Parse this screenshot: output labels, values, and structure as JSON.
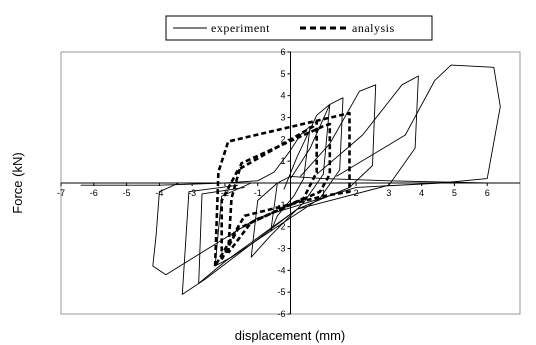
{
  "chart_data": {
    "type": "line",
    "title": "",
    "xlabel": "displacement (mm)",
    "ylabel": "Force (kN)",
    "xlim": [
      -7,
      7
    ],
    "ylim": [
      -6,
      6
    ],
    "x_ticks": [
      -7,
      -6,
      -5,
      -4,
      -3,
      -2,
      -1,
      1,
      2,
      3,
      4,
      5,
      6
    ],
    "y_ticks": [
      -6,
      -5,
      -4,
      -3,
      -2,
      -1,
      1,
      2,
      3,
      4,
      5,
      6
    ],
    "grid": false,
    "legend_position": "top-center",
    "series": [
      {
        "name": "experiment",
        "style": "solid",
        "color": "#000000",
        "loops": [
          [
            [
              -6.4,
              -0.1
            ],
            [
              -4,
              -0.1
            ],
            [
              -2,
              0
            ],
            [
              -1,
              0.1
            ],
            [
              -0.5,
              0.5
            ],
            [
              0,
              1.5
            ],
            [
              0.3,
              2.2
            ],
            [
              0.6,
              2.6
            ],
            [
              0.4,
              0.2
            ],
            [
              0.1,
              -0.6
            ],
            [
              -0.4,
              -1.5
            ],
            [
              -0.6,
              -2.2
            ],
            [
              -0.4,
              0
            ],
            [
              0,
              0.3
            ],
            [
              1,
              0.2
            ],
            [
              3,
              0.1
            ],
            [
              6,
              0
            ]
          ],
          [
            [
              -0.2,
              -0.3
            ],
            [
              0.2,
              1.2
            ],
            [
              0.8,
              3.1
            ],
            [
              1.2,
              3.6
            ],
            [
              1.0,
              0.4
            ],
            [
              0.4,
              -0.9
            ],
            [
              -0.6,
              -2.4
            ],
            [
              -1.2,
              -3.4
            ],
            [
              -1.0,
              -0.8
            ],
            [
              -0.4,
              0
            ]
          ],
          [
            [
              0,
              0.2
            ],
            [
              0.6,
              1.6
            ],
            [
              1.2,
              3.6
            ],
            [
              1.6,
              3.9
            ],
            [
              1.5,
              0.6
            ],
            [
              0.9,
              -0.7
            ],
            [
              -0.2,
              -1.8
            ],
            [
              -1.8,
              -3.4
            ],
            [
              -2.3,
              -3.8
            ],
            [
              -2.1,
              -0.6
            ],
            [
              -1.2,
              0
            ]
          ],
          [
            [
              0.3,
              0.3
            ],
            [
              1.2,
              1.8
            ],
            [
              2.1,
              4.2
            ],
            [
              2.6,
              4.5
            ],
            [
              2.5,
              0.8
            ],
            [
              1.8,
              -0.2
            ],
            [
              0.2,
              -1.2
            ],
            [
              -2.0,
              -3.6
            ],
            [
              -2.8,
              -4.6
            ],
            [
              -2.7,
              -0.5
            ],
            [
              -1.4,
              -0.2
            ]
          ],
          [
            [
              0.8,
              0.4
            ],
            [
              2.2,
              2.2
            ],
            [
              3.4,
              4.5
            ],
            [
              3.9,
              4.9
            ],
            [
              3.8,
              1.6
            ],
            [
              3.0,
              -0.1
            ],
            [
              0.2,
              -1.2
            ],
            [
              -2.6,
              -4.4
            ],
            [
              -3.3,
              -5.1
            ],
            [
              -3.1,
              -0.4
            ],
            [
              -1.6,
              -0.1
            ]
          ],
          [
            [
              1.4,
              0.3
            ],
            [
              3.5,
              2.2
            ],
            [
              4.4,
              4.7
            ],
            [
              4.9,
              5.4
            ],
            [
              6.2,
              5.3
            ],
            [
              6.4,
              3.5
            ],
            [
              6.0,
              0.2
            ],
            [
              4.6,
              0
            ],
            [
              2.0,
              -0.2
            ],
            [
              -1.0,
              -1.6
            ],
            [
              -3.8,
              -4.2
            ],
            [
              -4.2,
              -3.8
            ],
            [
              -4.1,
              -2.4
            ],
            [
              -4.0,
              -0.4
            ],
            [
              -3.4,
              0
            ]
          ]
        ]
      },
      {
        "name": "analysis",
        "style": "dashed",
        "color": "#000000",
        "loops": [
          [
            [
              -2.1,
              -3.5
            ],
            [
              -2.1,
              -0.8
            ],
            [
              -1.6,
              0.6
            ],
            [
              0.7,
              2.6
            ],
            [
              0.8,
              2.8
            ],
            [
              0.8,
              0.5
            ],
            [
              0.4,
              -0.7
            ],
            [
              -1.6,
              -2.1
            ],
            [
              -2.1,
              -3.5
            ]
          ],
          [
            [
              -1.9,
              -3.2
            ],
            [
              -1.8,
              -0.7
            ],
            [
              -1.5,
              0.9
            ],
            [
              1.0,
              2.6
            ],
            [
              1.2,
              2.7
            ],
            [
              1.2,
              0.4
            ],
            [
              0.9,
              -0.4
            ],
            [
              -1.2,
              -1.8
            ],
            [
              -1.9,
              -3.2
            ]
          ],
          [
            [
              -2.3,
              -3.8
            ],
            [
              -2.2,
              0.5
            ],
            [
              -1.9,
              1.9
            ],
            [
              1.8,
              3.2
            ],
            [
              1.8,
              -0.4
            ],
            [
              1.0,
              -0.6
            ],
            [
              -1.4,
              -1.5
            ],
            [
              -2.3,
              -3.8
            ]
          ]
        ]
      }
    ]
  }
}
